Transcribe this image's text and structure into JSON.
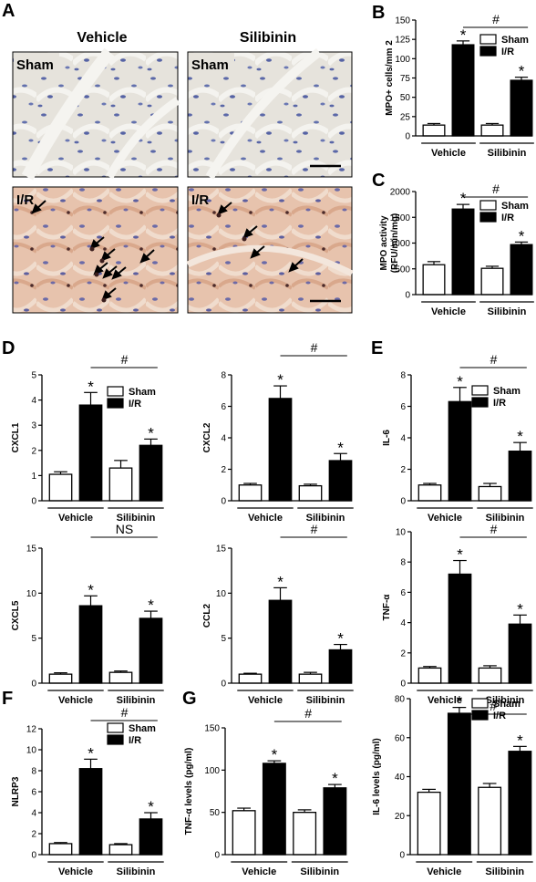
{
  "panel_labels": [
    "A",
    "B",
    "C",
    "D",
    "E",
    "F",
    "G"
  ],
  "micrograph": {
    "columns": [
      "Vehicle",
      "Silibinin"
    ],
    "rows": [
      "Sham",
      "I/R"
    ]
  },
  "chart_data": [
    {
      "id": "B",
      "type": "bar",
      "categories": [
        "Vehicle",
        "Silibinin"
      ],
      "series": [
        {
          "name": "Sham",
          "values": [
            14,
            14
          ],
          "err": [
            2,
            2
          ]
        },
        {
          "name": "I/R",
          "values": [
            118,
            72
          ],
          "err": [
            5,
            4
          ]
        }
      ],
      "ylabel": "MPO+ cells/mm 2",
      "ylim": [
        0,
        150
      ],
      "yticks": [
        "0",
        "25",
        "50",
        "75",
        "100",
        "125",
        "150"
      ],
      "legend": true,
      "stars": [
        false,
        true,
        false,
        true
      ],
      "bracket": "#"
    },
    {
      "id": "C",
      "type": "bar",
      "categories": [
        "Vehicle",
        "Silibinin"
      ],
      "series": [
        {
          "name": "Sham",
          "values": [
            580,
            510
          ],
          "err": [
            60,
            40
          ]
        },
        {
          "name": "I/R",
          "values": [
            1660,
            970
          ],
          "err": [
            90,
            50
          ]
        }
      ],
      "ylabel": "MPO activity",
      "ylabel2": "(RFU/min/mg)",
      "ylim": [
        0,
        2000
      ],
      "yticks": [
        "0",
        "500",
        "1000",
        "1500",
        "2000"
      ],
      "legend": true,
      "stars": [
        false,
        true,
        false,
        true
      ],
      "bracket": "#"
    },
    {
      "id": "D1",
      "type": "bar",
      "categories": [
        "Vehicle",
        "Silibinin"
      ],
      "series": [
        {
          "name": "Sham",
          "values": [
            1.05,
            1.3
          ],
          "err": [
            0.1,
            0.3
          ]
        },
        {
          "name": "I/R",
          "values": [
            3.8,
            2.2
          ],
          "err": [
            0.5,
            0.25
          ]
        }
      ],
      "ylabel": "CXCL1",
      "ylim": [
        0,
        5
      ],
      "yticks": [
        "0",
        "1",
        "2",
        "3",
        "4",
        "5"
      ],
      "legend": true,
      "stars": [
        false,
        true,
        false,
        true
      ],
      "bracket": "#"
    },
    {
      "id": "D2",
      "type": "bar",
      "categories": [
        "Vehicle",
        "Silibinin"
      ],
      "series": [
        {
          "name": "Sham",
          "values": [
            1.0,
            0.95
          ],
          "err": [
            0.1,
            0.1
          ]
        },
        {
          "name": "I/R",
          "values": [
            6.5,
            2.55
          ],
          "err": [
            0.8,
            0.45
          ]
        }
      ],
      "ylabel": "CXCL2",
      "ylim": [
        0,
        8
      ],
      "yticks": [
        "0",
        "2",
        "4",
        "6",
        "8"
      ],
      "legend": false,
      "stars": [
        false,
        true,
        false,
        true
      ],
      "bracket": "#"
    },
    {
      "id": "D3",
      "type": "bar",
      "categories": [
        "Vehicle",
        "Silibinin"
      ],
      "series": [
        {
          "name": "Sham",
          "values": [
            1.0,
            1.2
          ],
          "err": [
            0.15,
            0.15
          ]
        },
        {
          "name": "I/R",
          "values": [
            8.6,
            7.2
          ],
          "err": [
            1.1,
            0.8
          ]
        }
      ],
      "ylabel": "CXCL5",
      "ylim": [
        0,
        15
      ],
      "yticks": [
        "0",
        "5",
        "10",
        "15"
      ],
      "legend": false,
      "stars": [
        false,
        true,
        false,
        true
      ],
      "bracket": "NS"
    },
    {
      "id": "D4",
      "type": "bar",
      "categories": [
        "Vehicle",
        "Silibinin"
      ],
      "series": [
        {
          "name": "Sham",
          "values": [
            1.0,
            1.0
          ],
          "err": [
            0.1,
            0.2
          ]
        },
        {
          "name": "I/R",
          "values": [
            9.2,
            3.7
          ],
          "err": [
            1.4,
            0.6
          ]
        }
      ],
      "ylabel": "CCL2",
      "ylim": [
        0,
        15
      ],
      "yticks": [
        "0",
        "5",
        "10",
        "15"
      ],
      "legend": false,
      "stars": [
        false,
        true,
        false,
        true
      ],
      "bracket": "#"
    },
    {
      "id": "E1",
      "type": "bar",
      "categories": [
        "Vehicle",
        "Silibinin"
      ],
      "series": [
        {
          "name": "Sham",
          "values": [
            1.0,
            0.9
          ],
          "err": [
            0.1,
            0.2
          ]
        },
        {
          "name": "I/R",
          "values": [
            6.3,
            3.15
          ],
          "err": [
            0.9,
            0.55
          ]
        }
      ],
      "ylabel": "IL-6",
      "ylim": [
        0,
        8
      ],
      "yticks": [
        "0",
        "2",
        "4",
        "6",
        "8"
      ],
      "legend": true,
      "stars": [
        false,
        true,
        false,
        true
      ],
      "bracket": "#"
    },
    {
      "id": "E2",
      "type": "bar",
      "categories": [
        "Vehicle",
        "Silibinin"
      ],
      "series": [
        {
          "name": "Sham",
          "values": [
            1.0,
            1.0
          ],
          "err": [
            0.1,
            0.15
          ]
        },
        {
          "name": "I/R",
          "values": [
            7.2,
            3.9
          ],
          "err": [
            0.9,
            0.6
          ]
        }
      ],
      "ylabel": "TNF-α",
      "ylim": [
        0,
        10
      ],
      "yticks": [
        "0",
        "2",
        "4",
        "6",
        "8",
        "10"
      ],
      "legend": false,
      "stars": [
        false,
        true,
        false,
        true
      ],
      "bracket": "#"
    },
    {
      "id": "F",
      "type": "bar",
      "categories": [
        "Vehicle",
        "Silibinin"
      ],
      "series": [
        {
          "name": "Sham",
          "values": [
            1.05,
            0.95
          ],
          "err": [
            0.1,
            0.1
          ]
        },
        {
          "name": "I/R",
          "values": [
            8.2,
            3.4
          ],
          "err": [
            0.9,
            0.6
          ]
        }
      ],
      "ylabel": "NLRP3",
      "ylim": [
        0,
        12
      ],
      "yticks": [
        "0",
        "2",
        "4",
        "6",
        "8",
        "10",
        "12"
      ],
      "legend": true,
      "stars": [
        false,
        true,
        false,
        true
      ],
      "bracket": "#"
    },
    {
      "id": "G1",
      "type": "bar",
      "categories": [
        "Vehicle",
        "Silibinin"
      ],
      "series": [
        {
          "name": "Sham",
          "values": [
            52,
            50
          ],
          "err": [
            3,
            3
          ]
        },
        {
          "name": "I/R",
          "values": [
            108,
            79
          ],
          "err": [
            3,
            4
          ]
        }
      ],
      "ylabel": "TNF-α  levels (pg/ml)",
      "ylim": [
        0,
        150
      ],
      "yticks": [
        "0",
        "50",
        "100",
        "150"
      ],
      "legend": false,
      "stars": [
        false,
        true,
        false,
        true
      ],
      "bracket": "#"
    },
    {
      "id": "G2",
      "type": "bar",
      "categories": [
        "Vehicle",
        "Silibinin"
      ],
      "series": [
        {
          "name": "Sham",
          "values": [
            32,
            34.5
          ],
          "err": [
            1.5,
            2
          ]
        },
        {
          "name": "I/R",
          "values": [
            72.5,
            53
          ],
          "err": [
            3,
            2.5
          ]
        }
      ],
      "ylabel": "IL-6 levels (pg/ml)",
      "ylim": [
        0,
        80
      ],
      "yticks": [
        "0",
        "20",
        "40",
        "60",
        "80"
      ],
      "legend": true,
      "stars": [
        false,
        true,
        false,
        true
      ],
      "bracket": "#"
    }
  ]
}
